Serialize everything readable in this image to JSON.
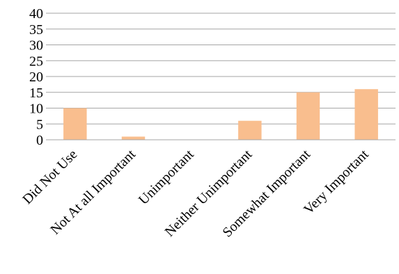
{
  "chart_data": {
    "type": "bar",
    "title": "",
    "xlabel": "",
    "ylabel": "",
    "categories": [
      "Did Not Use",
      "Not At all Important",
      "Unimportant",
      "Neither Unimportant",
      "Somewhat Important",
      "Very Important"
    ],
    "values": [
      10,
      1,
      0,
      6,
      15,
      16
    ],
    "ylim": [
      0,
      40
    ],
    "yticks": [
      0,
      5,
      10,
      15,
      20,
      25,
      30,
      35,
      40
    ],
    "grid": true,
    "legend": "none",
    "bar_color": "#f9be8e"
  }
}
